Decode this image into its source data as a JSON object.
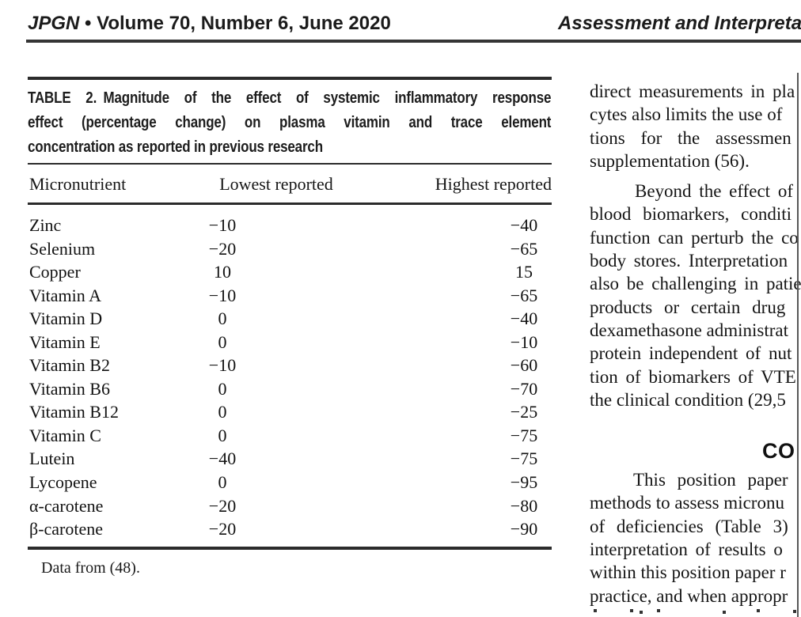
{
  "colors": {
    "text": "#161616",
    "rule": "#2b2b2b",
    "edge_line": "#575757"
  },
  "header": {
    "journal_abbrev": "JPGN",
    "issue_info": "• Volume 70, Number 6, June 2020",
    "running_title": "Assessment and Interpretation"
  },
  "table": {
    "caption_lines": [
      "TABLE 2. Magnitude of the effect of systemic inflammatory response",
      "effect (percentage change) on plasma vitamin and trace element",
      "concentration as reported in previous research"
    ],
    "columns": [
      "Micronutrient",
      "Lowest reported",
      "Highest reported"
    ],
    "rows": [
      {
        "micronutrient": "Zinc",
        "lowest": "−10",
        "highest": "−40"
      },
      {
        "micronutrient": "Selenium",
        "lowest": "−20",
        "highest": "−65"
      },
      {
        "micronutrient": "Copper",
        "lowest": "10",
        "highest": "15"
      },
      {
        "micronutrient": "Vitamin A",
        "lowest": "−10",
        "highest": "−65"
      },
      {
        "micronutrient": "Vitamin D",
        "lowest": "0",
        "highest": "−40"
      },
      {
        "micronutrient": "Vitamin E",
        "lowest": "0",
        "highest": "−10"
      },
      {
        "micronutrient": "Vitamin B2",
        "lowest": "−10",
        "highest": "−60"
      },
      {
        "micronutrient": "Vitamin B6",
        "lowest": "0",
        "highest": "−70"
      },
      {
        "micronutrient": "Vitamin B12",
        "lowest": "0",
        "highest": "−25"
      },
      {
        "micronutrient": "Vitamin C",
        "lowest": "0",
        "highest": "−75"
      },
      {
        "micronutrient": "Lutein",
        "lowest": "−40",
        "highest": "−75"
      },
      {
        "micronutrient": "Lycopene",
        "lowest": "0",
        "highest": "−95"
      },
      {
        "micronutrient": "α-carotene",
        "lowest": "−20",
        "highest": "−80"
      },
      {
        "micronutrient": "β-carotene",
        "lowest": "−20",
        "highest": "−90"
      }
    ],
    "footnote": "Data from (48)."
  },
  "right_column": {
    "paragraph1_lines": [
      "direct measurements in pla",
      "cytes also limits the use of",
      "tions for the assessmen",
      "supplementation (56)."
    ],
    "paragraph2_lines": [
      "Beyond the effect of",
      "blood biomarkers, conditi",
      "function can perturb the co",
      "body stores. Interpretation",
      "also be challenging in patie",
      "products or certain drug",
      "dexamethasone administrat",
      "protein independent of nut",
      "tion of biomarkers of VTE",
      "the clinical condition (29,5"
    ],
    "conclusion_heading": "CO",
    "paragraph3_lines": [
      "This position paper",
      "methods to assess micronu",
      "of deficiencies (Table 3)",
      "interpretation of results o",
      "within this position paper r",
      "practice, and when appropr"
    ]
  }
}
